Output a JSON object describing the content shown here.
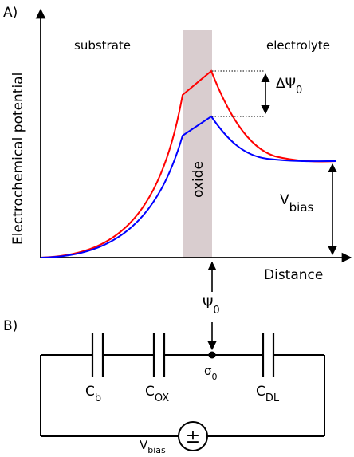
{
  "panel_a": {
    "label": "A)",
    "y_axis_label": "Electrochemical potential",
    "x_axis_label": "Distance",
    "region_substrate": "substrate",
    "region_electrolyte": "electrolyte",
    "region_oxide": "oxide",
    "delta_psi_symbol": "ΔΨ",
    "delta_psi_sub": "0",
    "vbias_symbol": "V",
    "vbias_sub": "bias",
    "psi_symbol": "Ψ",
    "psi_sub": "0",
    "colors": {
      "upper_curve": "#ff0000",
      "lower_curve": "#0000ff",
      "oxide_band": "#d9cdcf"
    }
  },
  "panel_b": {
    "label": "B)",
    "cap_bulk_symbol": "C",
    "cap_bulk_sub": "b",
    "cap_oxide_symbol": "C",
    "cap_oxide_sub": "OX",
    "cap_dl_symbol": "C",
    "cap_dl_sub": "DL",
    "node_symbol": "σ",
    "node_sub": "0",
    "source_symbol": "V",
    "source_sub": "bias",
    "source_glyph": "±"
  }
}
